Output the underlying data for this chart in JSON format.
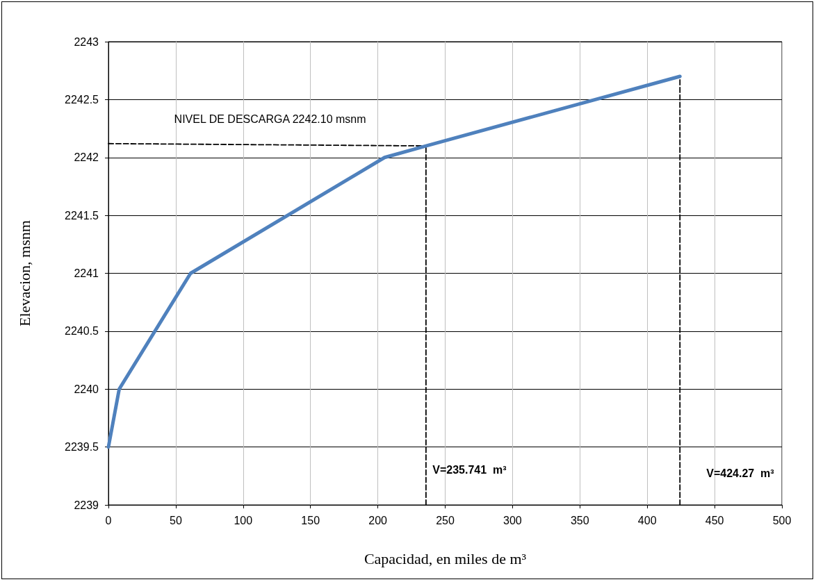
{
  "chart_data": {
    "type": "line",
    "xlabel": "Capacidad, en miles de m³",
    "ylabel": "Elevacion, msnm",
    "x": [
      0,
      8,
      61,
      205,
      235.741,
      424.27
    ],
    "series": [
      {
        "color": "#4f81bd",
        "values": [
          2239.5,
          2240,
          2241,
          2242,
          2242.1,
          2242.7
        ],
        "line_style": "solid"
      },
      {
        "color": "#000000",
        "x": [
          0,
          235.741
        ],
        "values": [
          2242.12,
          2242.1
        ],
        "line_style": "dashed"
      },
      {
        "color": "#000000",
        "x": [
          235.741,
          235.741
        ],
        "values": [
          2239,
          2242.1
        ],
        "line_style": "dashed"
      },
      {
        "color": "#000000",
        "x": [
          424.27,
          424.27
        ],
        "values": [
          2239,
          2242.7
        ],
        "line_style": "dashed"
      }
    ],
    "annotations": [
      "NIVEL DE DESCARGA 2242.10 msnm",
      "V=235.741  m³",
      "V=424.27  m³"
    ],
    "xlim": [
      0,
      500
    ],
    "xticks": [
      0,
      50,
      100,
      150,
      200,
      250,
      300,
      350,
      400,
      450,
      500
    ],
    "ylim": [
      2239,
      2243
    ],
    "yticks": [
      2239,
      2239.5,
      2240,
      2240.5,
      2241,
      2241.5,
      2242,
      2242.5,
      2243
    ],
    "grid": true,
    "marker": "none"
  }
}
